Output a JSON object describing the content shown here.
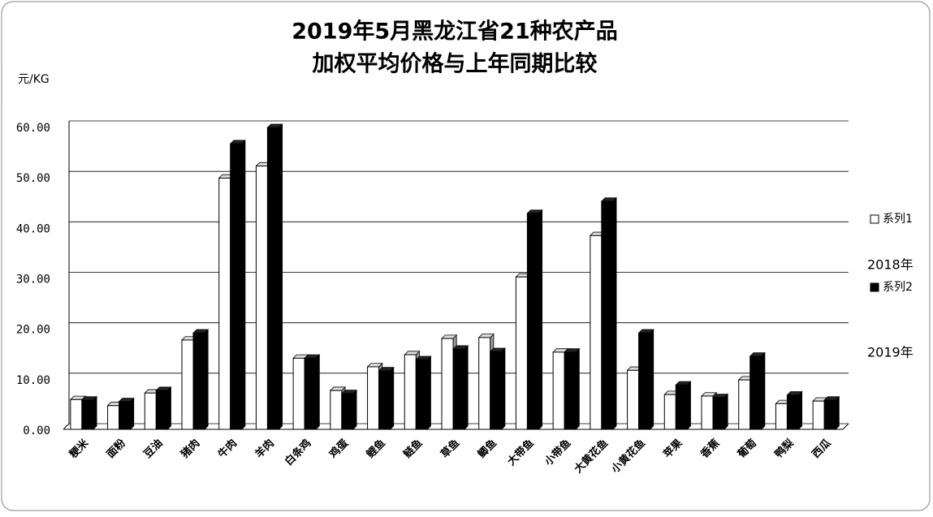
{
  "chart_data": {
    "type": "bar3d",
    "title": "2019年5月黑龙江省21种农产品",
    "subtitle": "加权平均价格与上年同期比较",
    "y_label": "元/KG",
    "categories": [
      "粳米",
      "面粉",
      "豆油",
      "猪肉",
      "牛肉",
      "羊肉",
      "白条鸡",
      "鸡蛋",
      "鲤鱼",
      "鲢鱼",
      "草鱼",
      "鲫鱼",
      "大带鱼",
      "小带鱼",
      "大黄花鱼",
      "小黄花鱼",
      "苹果",
      "香蕉",
      "葡萄",
      "鸭梨",
      "西瓜"
    ],
    "series": [
      {
        "name": "系列1",
        "color": "#ffffff",
        "values": [
          5.9,
          4.7,
          7.2,
          17.7,
          49.8,
          52.2,
          14.1,
          7.7,
          12.4,
          14.8,
          18.0,
          18.2,
          30.2,
          15.3,
          38.4,
          11.7,
          6.9,
          6.6,
          9.8,
          5.1,
          5.6
        ]
      },
      {
        "name": "系列2",
        "color": "#000000",
        "values": [
          5.8,
          5.5,
          7.7,
          19.1,
          56.6,
          59.8,
          14.1,
          7.1,
          11.6,
          13.8,
          15.9,
          15.4,
          42.8,
          15.3,
          45.2,
          19.1,
          8.8,
          6.3,
          14.5,
          6.8,
          5.8
        ]
      }
    ],
    "annotations": [
      "2018年",
      "2019年"
    ],
    "ylim": [
      0,
      60
    ],
    "yticks": [
      {
        "value": 0,
        "label": "0.00"
      },
      {
        "value": 10,
        "label": "10.00"
      },
      {
        "value": 20,
        "label": "20.00"
      },
      {
        "value": 30,
        "label": "30.00"
      },
      {
        "value": 40,
        "label": "40.00"
      },
      {
        "value": 50,
        "label": "50.00"
      },
      {
        "value": 60,
        "label": "60.00"
      }
    ],
    "grid": true
  }
}
